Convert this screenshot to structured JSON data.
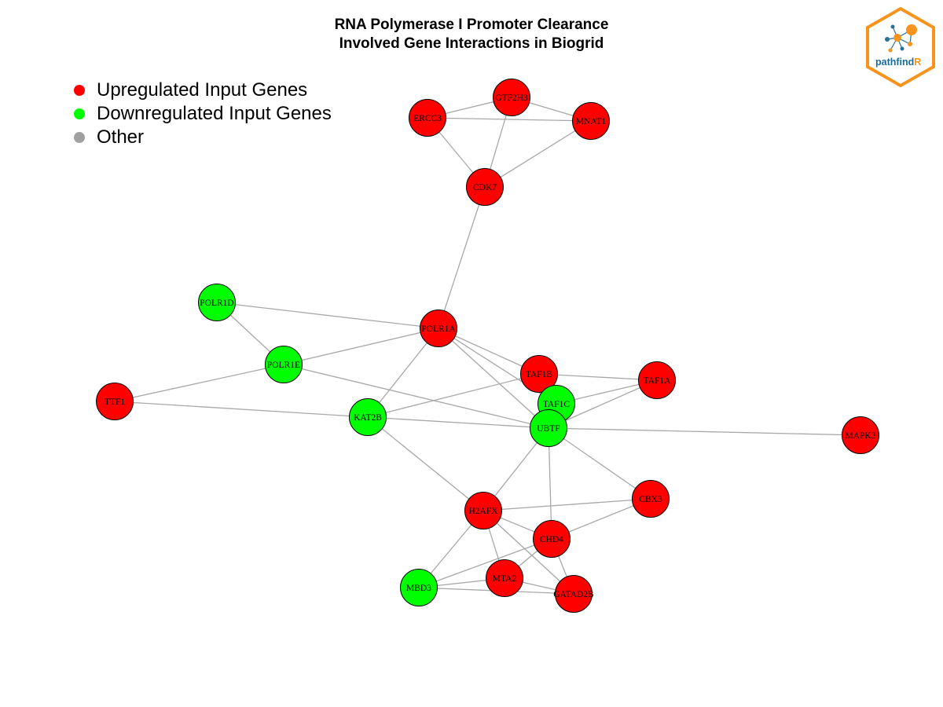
{
  "title_line1": "RNA Polymerase I Promoter Clearance",
  "title_line2": "Involved Gene Interactions in Biogrid",
  "legend": [
    {
      "label": "Upregulated Input Genes",
      "color": "#ff0000"
    },
    {
      "label": "Downregulated Input Genes",
      "color": "#00ff00"
    },
    {
      "label": "Other",
      "color": "#a0a0a0"
    }
  ],
  "colors": {
    "up": "#ff0000",
    "down": "#00ff00",
    "other": "#a0a0a0",
    "edge": "#a8a8a8",
    "node_border": "#000000"
  },
  "logo": {
    "text_a": "pathfind",
    "text_b": "R",
    "border_color": "#f7941d",
    "text_color": "#1a6b9a"
  },
  "nodes": [
    {
      "id": "GTF2H3",
      "group": "up"
    },
    {
      "id": "ERCC3",
      "group": "up"
    },
    {
      "id": "MNAT1",
      "group": "up"
    },
    {
      "id": "CDK7",
      "group": "up"
    },
    {
      "id": "POLR1D",
      "group": "down"
    },
    {
      "id": "POLR1A",
      "group": "up"
    },
    {
      "id": "POLR1E",
      "group": "down"
    },
    {
      "id": "TTF1",
      "group": "up"
    },
    {
      "id": "TAF1B",
      "group": "up"
    },
    {
      "id": "TAF1A",
      "group": "up"
    },
    {
      "id": "TAF1C",
      "group": "down"
    },
    {
      "id": "KAT2B",
      "group": "down"
    },
    {
      "id": "UBTF",
      "group": "down"
    },
    {
      "id": "MAPK3",
      "group": "up"
    },
    {
      "id": "CBX3",
      "group": "up"
    },
    {
      "id": "H2AFX",
      "group": "up"
    },
    {
      "id": "CHD4",
      "group": "up"
    },
    {
      "id": "MTA2",
      "group": "up"
    },
    {
      "id": "MBD3",
      "group": "down"
    },
    {
      "id": "GATAD2B",
      "group": "up"
    }
  ],
  "edges": [
    [
      "ERCC3",
      "GTF2H3"
    ],
    [
      "ERCC3",
      "MNAT1"
    ],
    [
      "GTF2H3",
      "MNAT1"
    ],
    [
      "ERCC3",
      "CDK7"
    ],
    [
      "GTF2H3",
      "CDK7"
    ],
    [
      "MNAT1",
      "CDK7"
    ],
    [
      "CDK7",
      "POLR1A"
    ],
    [
      "POLR1D",
      "POLR1A"
    ],
    [
      "POLR1D",
      "POLR1E"
    ],
    [
      "POLR1E",
      "POLR1A"
    ],
    [
      "POLR1E",
      "TTF1"
    ],
    [
      "POLR1E",
      "UBTF"
    ],
    [
      "TTF1",
      "KAT2B"
    ],
    [
      "POLR1A",
      "KAT2B"
    ],
    [
      "POLR1A",
      "TAF1B"
    ],
    [
      "POLR1A",
      "TAF1C"
    ],
    [
      "POLR1A",
      "UBTF"
    ],
    [
      "TAF1B",
      "TAF1A"
    ],
    [
      "TAF1B",
      "KAT2B"
    ],
    [
      "TAF1B",
      "UBTF"
    ],
    [
      "TAF1A",
      "TAF1C"
    ],
    [
      "TAF1A",
      "UBTF"
    ],
    [
      "TAF1C",
      "UBTF"
    ],
    [
      "KAT2B",
      "UBTF"
    ],
    [
      "KAT2B",
      "H2AFX"
    ],
    [
      "UBTF",
      "MAPK3"
    ],
    [
      "UBTF",
      "CBX3"
    ],
    [
      "UBTF",
      "H2AFX"
    ],
    [
      "UBTF",
      "CHD4"
    ],
    [
      "H2AFX",
      "CBX3"
    ],
    [
      "CHD4",
      "CBX3"
    ],
    [
      "H2AFX",
      "CHD4"
    ],
    [
      "H2AFX",
      "MTA2"
    ],
    [
      "H2AFX",
      "MBD3"
    ],
    [
      "H2AFX",
      "GATAD2B"
    ],
    [
      "CHD4",
      "MTA2"
    ],
    [
      "CHD4",
      "MBD3"
    ],
    [
      "CHD4",
      "GATAD2B"
    ],
    [
      "MTA2",
      "MBD3"
    ],
    [
      "MTA2",
      "GATAD2B"
    ],
    [
      "MBD3",
      "GATAD2B"
    ]
  ]
}
